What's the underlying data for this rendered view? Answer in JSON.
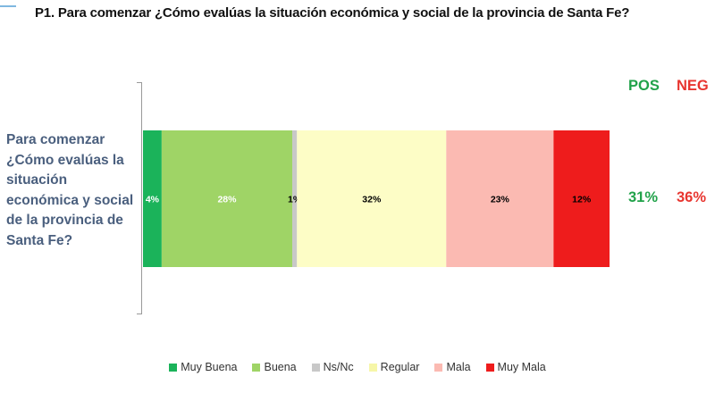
{
  "title": "P1. Para comenzar ¿Cómo evalúas la situación económica y social de la provincia de Santa Fe?",
  "question_label": "Para comenzar ¿Cómo evalúas la situación económica y social de la provincia de Santa Fe?",
  "summary": {
    "pos_label": "POS",
    "neg_label": "NEG",
    "pos_value": "31%",
    "neg_value": "36%"
  },
  "chart_data": {
    "type": "bar",
    "orientation": "horizontal",
    "stacked": true,
    "categories": [
      "Para comenzar ¿Cómo evalúas la situación económica y social de la provincia de Santa Fe?"
    ],
    "series": [
      {
        "name": "Muy Buena",
        "values": [
          4
        ],
        "label": "4%",
        "color": "#1bb35a",
        "label_color": "#ffffff"
      },
      {
        "name": "Buena",
        "values": [
          28
        ],
        "label": "28%",
        "color": "#9fd466",
        "label_color": "#ffffff"
      },
      {
        "name": "Ns/Nc",
        "values": [
          1
        ],
        "label": "1%",
        "color": "#c8c8c8",
        "label_color": "#000000"
      },
      {
        "name": "Regular",
        "values": [
          32
        ],
        "label": "32%",
        "color": "#fdfdc6",
        "label_color": "#000000"
      },
      {
        "name": "Mala",
        "values": [
          23
        ],
        "label": "23%",
        "color": "#fbbab2",
        "label_color": "#000000"
      },
      {
        "name": "Muy Mala",
        "values": [
          12
        ],
        "label": "12%",
        "color": "#ee1c1c",
        "label_color": "#000000"
      }
    ],
    "xlim": [
      0,
      100
    ],
    "grid": false,
    "legend_position": "bottom"
  }
}
